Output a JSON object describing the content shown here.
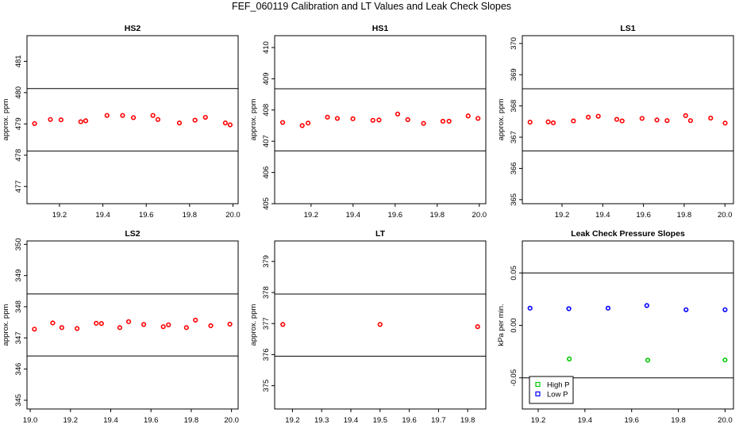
{
  "title": "FEF_060119  Calibration and LT Values and Leak Check Slopes",
  "chart_data": [
    {
      "type": "scatter",
      "title": "HS2",
      "xlabel": "",
      "ylabel": "approx. ppm",
      "xlim": [
        19.05,
        20.024
      ],
      "ylim": [
        476.45,
        481.82
      ],
      "xticks": [
        {
          "v": 19.2,
          "label": "19.2"
        },
        {
          "v": 19.4,
          "label": "19.4"
        },
        {
          "v": 19.6,
          "label": "19.6"
        },
        {
          "v": 19.8,
          "label": "19.8"
        },
        {
          "v": 20.0,
          "label": "20.0"
        }
      ],
      "yticks": [
        {
          "v": 477,
          "label": "477"
        },
        {
          "v": 478,
          "label": "478"
        },
        {
          "v": 479,
          "label": "479"
        },
        {
          "v": 480,
          "label": "480"
        },
        {
          "v": 481,
          "label": "481"
        }
      ],
      "hlines": [
        480.13,
        478.13
      ],
      "series": [
        {
          "color": "#ff0000",
          "x": [
            19.085,
            19.158,
            19.207,
            19.298,
            19.321,
            19.419,
            19.491,
            19.541,
            19.631,
            19.654,
            19.753,
            19.825,
            19.873,
            19.965,
            19.987
          ],
          "y": [
            479.01,
            479.14,
            479.13,
            479.07,
            479.1,
            479.27,
            479.27,
            479.2,
            479.27,
            479.14,
            479.03,
            479.12,
            479.21,
            479.03,
            478.97
          ]
        }
      ]
    },
    {
      "type": "scatter",
      "title": "HS1",
      "xlabel": "",
      "ylabel": "approx. ppm",
      "xlim": [
        19.027,
        20.031
      ],
      "ylim": [
        405.0,
        410.38
      ],
      "xticks": [
        {
          "v": 19.2,
          "label": "19.2"
        },
        {
          "v": 19.4,
          "label": "19.4"
        },
        {
          "v": 19.6,
          "label": "19.6"
        },
        {
          "v": 19.8,
          "label": "19.8"
        },
        {
          "v": 20.0,
          "label": "20.0"
        }
      ],
      "yticks": [
        {
          "v": 405,
          "label": "405"
        },
        {
          "v": 406,
          "label": "406"
        },
        {
          "v": 407,
          "label": "407"
        },
        {
          "v": 408,
          "label": "408"
        },
        {
          "v": 409,
          "label": "409"
        },
        {
          "v": 410,
          "label": "410"
        }
      ],
      "hlines": [
        408.68,
        406.69
      ],
      "series": [
        {
          "color": "#ff0000",
          "x": [
            19.065,
            19.158,
            19.186,
            19.278,
            19.325,
            19.399,
            19.494,
            19.523,
            19.612,
            19.66,
            19.735,
            19.827,
            19.856,
            19.947,
            19.994
          ],
          "y": [
            407.6,
            407.5,
            407.58,
            407.77,
            407.73,
            407.72,
            407.67,
            407.68,
            407.87,
            407.69,
            407.57,
            407.64,
            407.64,
            407.81,
            407.73
          ]
        }
      ]
    },
    {
      "type": "scatter",
      "title": "LS1",
      "xlabel": "",
      "ylabel": "approx. ppm",
      "xlim": [
        19.005,
        20.042
      ],
      "ylim": [
        364.87,
        370.25
      ],
      "xticks": [
        {
          "v": 19.2,
          "label": "19.2"
        },
        {
          "v": 19.4,
          "label": "19.4"
        },
        {
          "v": 19.6,
          "label": "19.6"
        },
        {
          "v": 19.8,
          "label": "19.8"
        },
        {
          "v": 20.0,
          "label": "20.0"
        }
      ],
      "yticks": [
        {
          "v": 365,
          "label": "365"
        },
        {
          "v": 366,
          "label": "366"
        },
        {
          "v": 367,
          "label": "367"
        },
        {
          "v": 368,
          "label": "368"
        },
        {
          "v": 369,
          "label": "369"
        },
        {
          "v": 370,
          "label": "370"
        }
      ],
      "hlines": [
        368.55,
        366.56
      ],
      "series": [
        {
          "color": "#ff0000",
          "x": [
            19.043,
            19.132,
            19.157,
            19.256,
            19.329,
            19.378,
            19.469,
            19.495,
            19.593,
            19.666,
            19.716,
            19.807,
            19.831,
            19.93,
            20.001
          ],
          "y": [
            367.48,
            367.49,
            367.46,
            367.52,
            367.64,
            367.67,
            367.57,
            367.52,
            367.6,
            367.55,
            367.53,
            367.69,
            367.53,
            367.61,
            367.45
          ]
        }
      ]
    },
    {
      "type": "scatter",
      "title": "LS2",
      "xlabel": "",
      "ylabel": "approx. ppm",
      "xlim": [
        18.984,
        20.033
      ],
      "ylim": [
        344.72,
        350.11
      ],
      "xticks": [
        {
          "v": 19.0,
          "label": "19.0"
        },
        {
          "v": 19.2,
          "label": "19.2"
        },
        {
          "v": 19.4,
          "label": "19.4"
        },
        {
          "v": 19.6,
          "label": "19.6"
        },
        {
          "v": 19.8,
          "label": "19.8"
        },
        {
          "v": 20.0,
          "label": "20.0"
        }
      ],
      "yticks": [
        {
          "v": 345,
          "label": "345"
        },
        {
          "v": 346,
          "label": "346"
        },
        {
          "v": 347,
          "label": "347"
        },
        {
          "v": 348,
          "label": "348"
        },
        {
          "v": 349,
          "label": "349"
        },
        {
          "v": 350,
          "label": "350"
        }
      ],
      "hlines": [
        348.41,
        346.42
      ],
      "series": [
        {
          "color": "#ff0000",
          "x": [
            19.021,
            19.112,
            19.157,
            19.233,
            19.328,
            19.354,
            19.445,
            19.489,
            19.564,
            19.661,
            19.687,
            19.776,
            19.821,
            19.897,
            19.992
          ],
          "y": [
            347.28,
            347.48,
            347.33,
            347.3,
            347.47,
            347.46,
            347.33,
            347.52,
            347.43,
            347.36,
            347.42,
            347.33,
            347.57,
            347.39,
            347.44
          ]
        }
      ]
    },
    {
      "type": "scatter",
      "title": "LT",
      "xlabel": "",
      "ylabel": "approx. ppm",
      "xlim": [
        19.139,
        19.862
      ],
      "ylim": [
        374.25,
        379.66
      ],
      "xticks": [
        {
          "v": 19.2,
          "label": "19.2"
        },
        {
          "v": 19.3,
          "label": "19.3"
        },
        {
          "v": 19.4,
          "label": "19.4"
        },
        {
          "v": 19.5,
          "label": "19.5"
        },
        {
          "v": 19.6,
          "label": "19.6"
        },
        {
          "v": 19.7,
          "label": "19.7"
        },
        {
          "v": 19.8,
          "label": "19.8"
        }
      ],
      "yticks": [
        {
          "v": 375,
          "label": "375"
        },
        {
          "v": 376,
          "label": "376"
        },
        {
          "v": 377,
          "label": "377"
        },
        {
          "v": 378,
          "label": "378"
        },
        {
          "v": 379,
          "label": "379"
        }
      ],
      "hlines": [
        377.95,
        375.95
      ],
      "series": [
        {
          "color": "#ff0000",
          "x": [
            19.167,
            19.5,
            19.834
          ],
          "y": [
            376.97,
            376.97,
            376.9
          ]
        }
      ]
    },
    {
      "type": "scatter",
      "title": "Leak Check Pressure Slopes",
      "xlabel": "",
      "ylabel": "kPa per min.",
      "xlim": [
        19.132,
        20.036
      ],
      "ylim": [
        -0.0797,
        0.0805
      ],
      "xticks": [
        {
          "v": 19.2,
          "label": "19.2"
        },
        {
          "v": 19.4,
          "label": "19.4"
        },
        {
          "v": 19.6,
          "label": "19.6"
        },
        {
          "v": 19.8,
          "label": "19.8"
        },
        {
          "v": 20.0,
          "label": "20.0"
        }
      ],
      "yticks": [
        {
          "v": -0.05,
          "label": "-0.05"
        },
        {
          "v": 0.0,
          "label": "0.00"
        },
        {
          "v": 0.05,
          "label": "0.05"
        }
      ],
      "hlines": [
        0.05,
        -0.05
      ],
      "legend": "bottom-left",
      "series": [
        {
          "name": "High P",
          "color": "#00cc00",
          "x": [
            19.333,
            19.669,
            20.0
          ],
          "y": [
            -0.032,
            -0.0332,
            -0.033
          ]
        },
        {
          "name": "Low P",
          "color": "#0000ff",
          "x": [
            19.165,
            19.331,
            19.499,
            19.665,
            19.833,
            20.0
          ],
          "y": [
            0.0164,
            0.0159,
            0.0164,
            0.0189,
            0.0149,
            0.0149
          ]
        }
      ]
    }
  ]
}
